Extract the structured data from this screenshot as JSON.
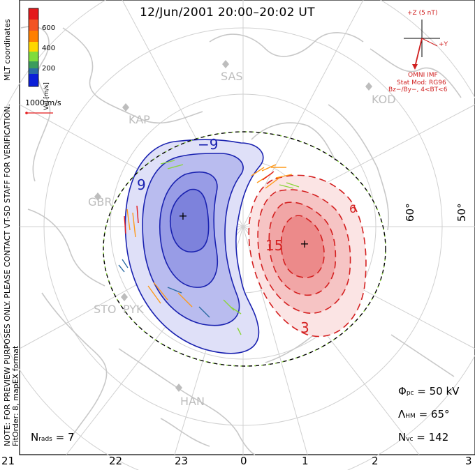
{
  "title": "12/Jun/2001 20:00–20:02 UT",
  "colorbar": {
    "axis_label": "Vel [m/s]",
    "ticks": [
      "600",
      "400",
      "200"
    ],
    "colors": [
      "#e41a1c",
      "#ff7f00",
      "#ffd700",
      "#7fdc3c",
      "#3c9c5c",
      "#2c6ca4",
      "#0b1fd8"
    ]
  },
  "mlt_label": "MLT coordinates",
  "velocity_scale": "1000 m/s",
  "imf": {
    "bz_label": "+Z (5 nT)",
    "by_label": "+Y",
    "source": "OMNI IMF",
    "stat_mod": "Stat Mod: RG96",
    "condition": "Bz−/By−, 4<BT<6"
  },
  "preview_note": "NOTE: FOR PREVIEW PURPOSES ONLY. PLEASE CONTACT VT-SD STAFF FOR VERIFICATION.",
  "fit_order": "FitOrder: 8, mapEX format",
  "stations": [
    "SAS",
    "KOD",
    "KAP",
    "GBR",
    "STO",
    "PYK",
    "HAN"
  ],
  "contour_labels": {
    "neg_outer": "−9",
    "neg_side": "9",
    "pos_inner": "15",
    "pos_outer": "3",
    "pos_top": "6"
  },
  "latitude_labels": [
    "60°",
    "50°"
  ],
  "stats": {
    "phi_symbol": "Φ",
    "phi_sub": "pc",
    "phi_value": "= 50 kV",
    "lambda_symbol": "Λ",
    "lambda_sub": "HM",
    "lambda_value": "= 65°",
    "nvc_symbol": "N",
    "nvc_sub": "vc",
    "nvc_value": "= 142",
    "nrads_symbol": "N",
    "nrads_sub": "rads",
    "nrads_value": "= 7"
  },
  "mlt_ticks": [
    "21",
    "22",
    "23",
    "0",
    "1",
    "2",
    "3"
  ],
  "colors": {
    "negative_fill": "#8d92e8",
    "negative_line": "#1a22b0",
    "positive_fill": "#ec8080",
    "positive_line": "#d42020",
    "map": "#c8c8c8",
    "grid": "#d0d0d0"
  }
}
